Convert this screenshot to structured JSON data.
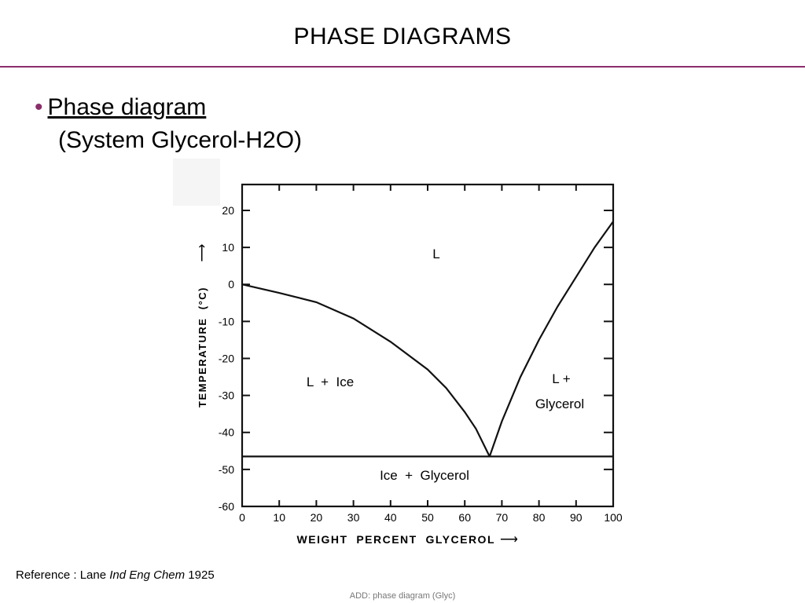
{
  "slide": {
    "title": "PHASE DIAGRAMS",
    "accent_color": "#8b2d6b",
    "bullet": {
      "marker": "•",
      "heading": "Phase diagram",
      "subheading": "(System Glycerol-H2O)"
    },
    "reference": {
      "prefix": "Reference : Lane ",
      "journal": "Ind Eng Chem",
      "year": " 1925"
    },
    "footer_note": "ADD: phase diagram (Glyc)"
  },
  "diagram": {
    "x_axis": {
      "label": "WEIGHT  PERCENT  GLYCEROL",
      "arrow": "⟶",
      "min": 0,
      "max": 100,
      "ticks": [
        0,
        10,
        20,
        30,
        40,
        50,
        60,
        70,
        80,
        90,
        100
      ]
    },
    "y_axis": {
      "label": "TEMPERATURE  (°C)",
      "arrow": "⟶",
      "min": -60,
      "max": 27,
      "ticks": [
        20,
        10,
        0,
        -10,
        -20,
        -30,
        -40,
        -50,
        -60
      ]
    },
    "regions": {
      "liquid": "L",
      "liquid_ice": "L  +  Ice",
      "liquid_glycerol_line1": "L +",
      "liquid_glycerol_line2": "Glycerol",
      "solid": "Ice  +  Glycerol"
    },
    "eutectic": {
      "wt_percent_glycerol": 66.7,
      "temperature_c": -46.5
    },
    "ice_liquidus": [
      [
        0,
        0
      ],
      [
        10,
        -2.3
      ],
      [
        20,
        -4.8
      ],
      [
        30,
        -9.2
      ],
      [
        40,
        -15.5
      ],
      [
        50,
        -23
      ],
      [
        55,
        -28
      ],
      [
        60,
        -34.5
      ],
      [
        63,
        -39
      ],
      [
        66.7,
        -46.5
      ]
    ],
    "glycerol_liquidus": [
      [
        66.7,
        -46.5
      ],
      [
        70,
        -37
      ],
      [
        75,
        -25
      ],
      [
        80,
        -15
      ],
      [
        85,
        -6
      ],
      [
        90,
        2
      ],
      [
        95,
        10
      ],
      [
        100,
        17
      ]
    ],
    "eutectic_line_temperature_c": -46.5
  }
}
